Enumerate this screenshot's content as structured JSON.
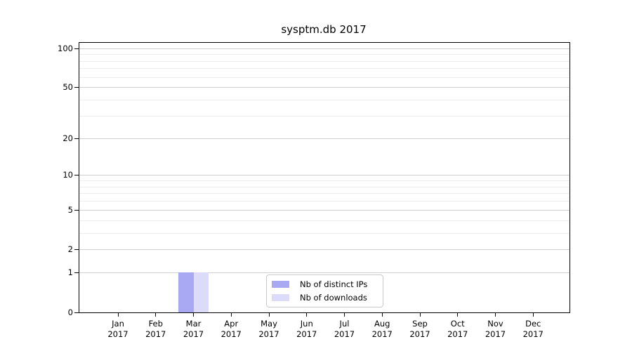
{
  "chart_data": {
    "type": "bar",
    "title": "sysptm.db 2017",
    "categories": [
      "Jan",
      "Feb",
      "Mar",
      "Apr",
      "May",
      "Jun",
      "Jul",
      "Aug",
      "Sep",
      "Oct",
      "Nov",
      "Dec"
    ],
    "x_tick_year": "2017",
    "series": [
      {
        "name": "Nb of distinct IPs",
        "color": "#a9a9f3",
        "values": [
          0,
          0,
          1,
          0,
          0,
          0,
          0,
          0,
          0,
          0,
          0,
          0
        ]
      },
      {
        "name": "Nb of downloads",
        "color": "#dcdcfa",
        "values": [
          0,
          0,
          1,
          0,
          0,
          0,
          0,
          0,
          0,
          0,
          0,
          0
        ]
      }
    ],
    "xlabel": "",
    "ylabel": "",
    "y_axis": {
      "scale": "log1p",
      "major_ticks": [
        0,
        1,
        2,
        5,
        10,
        20,
        50,
        100
      ],
      "minor_gridlines": [
        3,
        4,
        6,
        7,
        8,
        9,
        30,
        40,
        60,
        70,
        80,
        90
      ],
      "ylim": [
        0,
        110
      ]
    },
    "legend": {
      "position": "lower-center"
    },
    "grid": true
  },
  "colors": {
    "grid_major": "#cfcfcf",
    "grid_minor": "#ececec",
    "spine": "#000000",
    "text": "#000000",
    "background": "#ffffff",
    "legend_border": "#c9c9c9"
  }
}
